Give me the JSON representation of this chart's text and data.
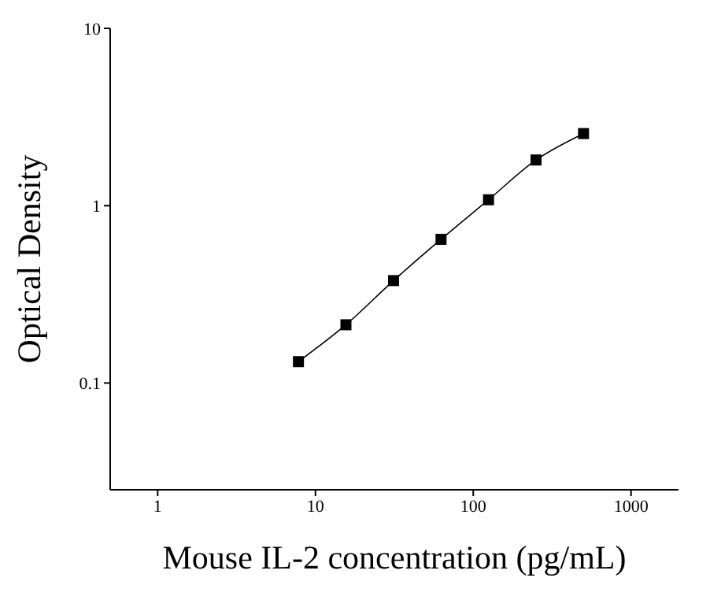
{
  "chart_data": {
    "type": "scatter",
    "xlabel": "Mouse IL-2 concentration (pg/mL)",
    "ylabel": "Optical Density",
    "log": "xy",
    "grid": false,
    "legend": false,
    "marker": "square",
    "xlim": [
      0.5,
      2000
    ],
    "xticks": [
      1,
      10,
      100,
      1000
    ],
    "ylim": [
      0.025,
      10
    ],
    "yticks": [
      0.1,
      1,
      10
    ],
    "series": [
      {
        "color": "#000000",
        "x": [
          7.8,
          15.6,
          31.25,
          62.5,
          125,
          250,
          500
        ],
        "values": [
          0.132,
          0.213,
          0.378,
          0.646,
          1.08,
          1.81,
          2.55
        ]
      },
      {
        "type": "line",
        "color": "#000000",
        "marker": "none",
        "line_style": "solid",
        "x": [
          7.8,
          15.6,
          31.25,
          62.5,
          125,
          250,
          500
        ],
        "values": [
          0.132,
          0.213,
          0.378,
          0.646,
          1.08,
          1.81,
          2.55
        ]
      }
    ]
  }
}
